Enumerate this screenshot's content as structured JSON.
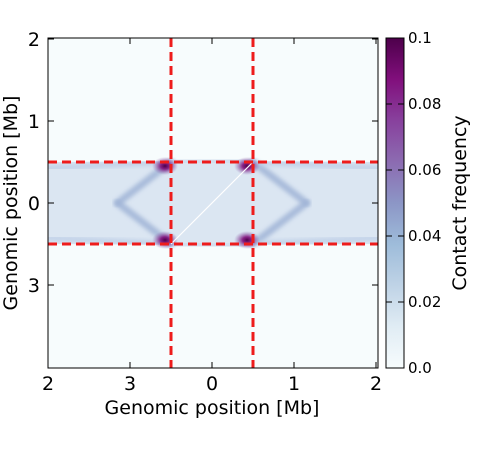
{
  "chart_data": {
    "type": "heatmap",
    "xlabel": "Genomic position [Mb]",
    "ylabel": "Genomic position [Mb]",
    "x_tick_labels": [
      "2",
      "3",
      "0",
      "1",
      "2"
    ],
    "y_tick_labels": [
      "2",
      "1",
      "0",
      "3"
    ],
    "colorbar": {
      "label": "Contact frequency",
      "range": [
        0.0,
        0.1
      ],
      "tick_labels": [
        "0.0",
        "0.02",
        "0.04",
        "0.06",
        "0.08",
        "0.1"
      ],
      "colormap": [
        "#f7fcfd",
        "#e0ecf4",
        "#bfd3e6",
        "#9ebcda",
        "#8c96c6",
        "#8c6bb1",
        "#88419d",
        "#810f7c",
        "#4d004b"
      ]
    },
    "boundary_lines": {
      "color": "#ee1c1c",
      "style": "dashed",
      "vertical_x_mb": [
        -0.5,
        0.5
      ],
      "horizontal_y_mb": [
        0.5,
        -0.5
      ]
    },
    "diagonal_line": {
      "color": "#ffffff",
      "from_mb": [
        -0.5,
        -0.5
      ],
      "to_mb": [
        0.5,
        0.5
      ]
    },
    "hotspots_mb": [
      [
        -0.5,
        0.5
      ],
      [
        0.5,
        0.5
      ],
      [
        -0.5,
        -0.5
      ],
      [
        0.5,
        -0.5
      ]
    ],
    "grid": false
  }
}
